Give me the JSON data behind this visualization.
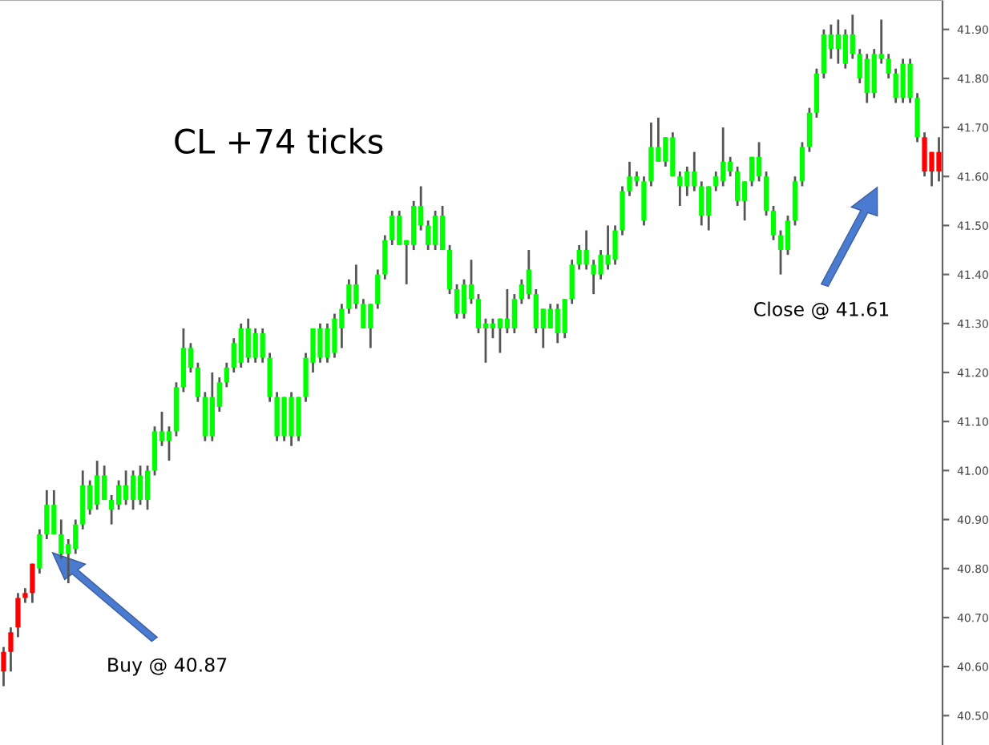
{
  "chart_data": {
    "type": "candlestick",
    "title": "CL +74 ticks",
    "annotations": [
      "Buy @ 40.87",
      "Close @ 41.61"
    ],
    "categories": [
      null,
      null,
      null,
      null,
      null,
      null,
      null,
      null,
      null,
      null,
      null,
      null,
      null,
      null,
      null,
      null,
      null,
      null,
      null,
      null,
      null,
      null,
      null,
      null,
      null,
      null,
      null,
      null,
      null,
      null,
      null,
      null,
      null,
      null,
      null,
      null,
      null,
      null,
      null,
      null,
      null,
      null,
      null,
      null,
      null,
      null,
      null,
      null,
      null,
      null,
      null,
      null,
      null,
      null,
      null,
      null,
      null,
      null,
      null,
      null,
      null,
      null,
      null,
      null,
      null,
      null,
      null,
      null,
      null,
      null,
      null,
      null,
      null,
      null,
      null,
      null,
      null,
      null,
      null,
      null,
      null,
      null,
      null,
      null,
      null,
      null,
      null,
      null,
      null,
      null,
      null,
      null,
      null,
      null,
      null,
      null,
      null,
      null,
      null,
      null,
      null,
      null,
      null,
      null,
      null,
      null,
      null,
      null,
      null,
      null,
      null,
      null,
      null,
      null,
      null,
      null,
      null,
      null,
      null,
      null,
      null,
      null,
      null,
      null,
      null,
      null,
      null,
      null,
      null,
      null,
      null
    ],
    "ohlc": [
      [
        40.63,
        40.64,
        40.56,
        40.59
      ],
      [
        40.67,
        40.68,
        40.59,
        40.63
      ],
      [
        40.74,
        40.75,
        40.66,
        40.68
      ],
      [
        40.75,
        40.76,
        40.73,
        40.74
      ],
      [
        40.81,
        40.81,
        40.73,
        40.75
      ],
      [
        40.8,
        40.88,
        40.79,
        40.87
      ],
      [
        40.87,
        40.96,
        40.86,
        40.93
      ],
      [
        40.87,
        40.96,
        40.87,
        40.93
      ],
      [
        40.83,
        40.9,
        40.82,
        40.87
      ],
      [
        40.83,
        40.86,
        40.77,
        40.85
      ],
      [
        40.84,
        40.9,
        40.83,
        40.89
      ],
      [
        40.89,
        41.0,
        40.88,
        40.97
      ],
      [
        40.92,
        40.98,
        40.91,
        40.97
      ],
      [
        40.93,
        41.02,
        40.92,
        40.99
      ],
      [
        40.94,
        41.01,
        40.94,
        40.99
      ],
      [
        40.92,
        40.95,
        40.89,
        40.94
      ],
      [
        40.93,
        40.98,
        40.92,
        40.97
      ],
      [
        40.94,
        41.0,
        40.93,
        40.97
      ],
      [
        40.94,
        41.0,
        40.92,
        40.99
      ],
      [
        40.94,
        41.01,
        40.93,
        40.99
      ],
      [
        40.94,
        41.01,
        40.92,
        41.0
      ],
      [
        41.0,
        41.09,
        40.99,
        41.08
      ],
      [
        41.06,
        41.12,
        41.05,
        41.08
      ],
      [
        41.06,
        41.09,
        41.02,
        41.08
      ],
      [
        41.08,
        41.18,
        41.07,
        41.17
      ],
      [
        41.17,
        41.29,
        41.16,
        41.25
      ],
      [
        41.21,
        41.26,
        41.2,
        41.25
      ],
      [
        41.15,
        41.22,
        41.14,
        41.21
      ],
      [
        41.07,
        41.16,
        41.06,
        41.15
      ],
      [
        41.07,
        41.2,
        41.06,
        41.15
      ],
      [
        41.13,
        41.19,
        41.12,
        41.18
      ],
      [
        41.18,
        41.22,
        41.17,
        41.21
      ],
      [
        41.21,
        41.27,
        41.2,
        41.26
      ],
      [
        41.22,
        41.3,
        41.21,
        41.29
      ],
      [
        41.23,
        41.31,
        41.22,
        41.29
      ],
      [
        41.23,
        41.29,
        41.22,
        41.28
      ],
      [
        41.23,
        41.29,
        41.22,
        41.28
      ],
      [
        41.15,
        41.24,
        41.14,
        41.23
      ],
      [
        41.07,
        41.16,
        41.06,
        41.15
      ],
      [
        41.07,
        41.15,
        41.06,
        41.15
      ],
      [
        41.07,
        41.16,
        41.05,
        41.15
      ],
      [
        41.07,
        41.15,
        41.06,
        41.15
      ],
      [
        41.15,
        41.24,
        41.14,
        41.23
      ],
      [
        41.22,
        41.29,
        41.2,
        41.29
      ],
      [
        41.23,
        41.3,
        41.22,
        41.29
      ],
      [
        41.23,
        41.3,
        41.22,
        41.29
      ],
      [
        41.24,
        41.32,
        41.23,
        41.31
      ],
      [
        41.29,
        41.34,
        41.25,
        41.33
      ],
      [
        41.33,
        41.39,
        41.32,
        41.38
      ],
      [
        41.34,
        41.42,
        41.33,
        41.38
      ],
      [
        41.29,
        41.35,
        41.29,
        41.34
      ],
      [
        41.29,
        41.34,
        41.25,
        41.34
      ],
      [
        41.34,
        41.41,
        41.33,
        41.4
      ],
      [
        41.4,
        41.48,
        41.39,
        41.47
      ],
      [
        41.47,
        41.53,
        41.46,
        41.52
      ],
      [
        41.46,
        41.53,
        41.46,
        41.52
      ],
      [
        41.46,
        41.47,
        41.38,
        41.47
      ],
      [
        41.46,
        41.55,
        41.45,
        41.54
      ],
      [
        41.5,
        41.58,
        41.49,
        41.54
      ],
      [
        41.46,
        41.51,
        41.45,
        41.5
      ],
      [
        41.46,
        41.53,
        41.45,
        41.52
      ],
      [
        41.45,
        41.54,
        41.45,
        41.52
      ],
      [
        41.37,
        41.46,
        41.36,
        41.45
      ],
      [
        41.32,
        41.38,
        41.31,
        41.37
      ],
      [
        41.32,
        41.39,
        41.31,
        41.38
      ],
      [
        41.35,
        41.43,
        41.34,
        41.38
      ],
      [
        41.29,
        41.36,
        41.28,
        41.35
      ],
      [
        41.29,
        41.31,
        41.22,
        41.3
      ],
      [
        41.29,
        41.31,
        41.27,
        41.3
      ],
      [
        41.29,
        41.31,
        41.24,
        41.31
      ],
      [
        41.29,
        41.37,
        41.28,
        41.31
      ],
      [
        41.29,
        41.36,
        41.28,
        41.35
      ],
      [
        41.35,
        41.39,
        41.34,
        41.38
      ],
      [
        41.36,
        41.45,
        41.35,
        41.41
      ],
      [
        41.29,
        41.37,
        41.28,
        41.36
      ],
      [
        41.29,
        41.33,
        41.25,
        41.33
      ],
      [
        41.29,
        41.34,
        41.29,
        41.33
      ],
      [
        41.28,
        41.34,
        41.26,
        41.33
      ],
      [
        41.28,
        41.35,
        41.27,
        41.35
      ],
      [
        41.35,
        41.43,
        41.34,
        41.42
      ],
      [
        41.42,
        41.46,
        41.41,
        41.45
      ],
      [
        41.42,
        41.49,
        41.41,
        41.45
      ],
      [
        41.4,
        41.43,
        41.36,
        41.42
      ],
      [
        41.4,
        41.45,
        41.39,
        41.44
      ],
      [
        41.42,
        41.5,
        41.41,
        41.44
      ],
      [
        41.43,
        41.5,
        41.42,
        41.49
      ],
      [
        41.49,
        41.58,
        41.48,
        41.57
      ],
      [
        41.57,
        41.63,
        41.56,
        41.6
      ],
      [
        41.59,
        41.61,
        41.58,
        41.6
      ],
      [
        41.51,
        41.6,
        41.5,
        41.59
      ],
      [
        41.59,
        41.71,
        41.58,
        41.66
      ],
      [
        41.63,
        41.72,
        41.63,
        41.66
      ],
      [
        41.63,
        41.68,
        41.62,
        41.68
      ],
      [
        41.6,
        41.69,
        41.6,
        41.68
      ],
      [
        41.58,
        41.61,
        41.54,
        41.6
      ],
      [
        41.58,
        41.62,
        41.56,
        41.61
      ],
      [
        41.58,
        41.65,
        41.57,
        41.61
      ],
      [
        41.52,
        41.59,
        41.5,
        41.58
      ],
      [
        41.52,
        41.58,
        41.49,
        41.58
      ],
      [
        41.58,
        41.61,
        41.57,
        41.6
      ],
      [
        41.59,
        41.7,
        41.58,
        41.63
      ],
      [
        41.61,
        41.64,
        41.6,
        41.63
      ],
      [
        41.55,
        41.62,
        41.54,
        41.61
      ],
      [
        41.55,
        41.59,
        41.51,
        41.59
      ],
      [
        41.59,
        41.64,
        41.58,
        41.64
      ],
      [
        41.6,
        41.67,
        41.59,
        41.64
      ],
      [
        41.53,
        41.61,
        41.52,
        41.6
      ],
      [
        41.48,
        41.54,
        41.47,
        41.53
      ],
      [
        41.45,
        41.49,
        41.4,
        41.48
      ],
      [
        41.45,
        41.52,
        41.44,
        41.51
      ],
      [
        41.51,
        41.6,
        41.5,
        41.59
      ],
      [
        41.59,
        41.67,
        41.58,
        41.66
      ],
      [
        41.66,
        41.74,
        41.65,
        41.73
      ],
      [
        41.73,
        41.82,
        41.72,
        41.81
      ],
      [
        41.81,
        41.9,
        41.8,
        41.89
      ],
      [
        41.86,
        41.91,
        41.84,
        41.89
      ],
      [
        41.86,
        41.92,
        41.83,
        41.89
      ],
      [
        41.83,
        41.9,
        41.82,
        41.89
      ],
      [
        41.85,
        41.93,
        41.84,
        41.89
      ],
      [
        41.8,
        41.86,
        41.79,
        41.85
      ],
      [
        41.77,
        41.85,
        41.75,
        41.84
      ],
      [
        41.77,
        41.86,
        41.76,
        41.85
      ],
      [
        41.84,
        41.92,
        41.83,
        41.85
      ],
      [
        41.81,
        41.85,
        41.8,
        41.84
      ],
      [
        41.76,
        41.82,
        41.75,
        41.81
      ],
      [
        41.76,
        41.84,
        41.75,
        41.83
      ],
      [
        41.76,
        41.84,
        41.75,
        41.83
      ],
      [
        41.68,
        41.77,
        41.67,
        41.76
      ],
      [
        41.68,
        41.69,
        41.6,
        41.61
      ],
      [
        41.65,
        41.65,
        41.58,
        41.61
      ],
      [
        41.65,
        41.68,
        41.59,
        41.61
      ]
    ],
    "colors": [
      "#ff0000",
      "#ff0000",
      "#ff0000",
      "#ff0000",
      "#ff0000",
      "#00ff00",
      "#00ff00",
      "#00ff00",
      "#00ff00",
      "#00ff00",
      "#00ff00",
      "#00ff00",
      "#00ff00",
      "#00ff00",
      "#00ff00",
      "#00ff00",
      "#00ff00",
      "#00ff00",
      "#00ff00",
      "#00ff00",
      "#00ff00",
      "#00ff00",
      "#00ff00",
      "#00ff00",
      "#00ff00",
      "#00ff00",
      "#00ff00",
      "#00ff00",
      "#00ff00",
      "#00ff00",
      "#00ff00",
      "#00ff00",
      "#00ff00",
      "#00ff00",
      "#00ff00",
      "#00ff00",
      "#00ff00",
      "#00ff00",
      "#00ff00",
      "#00ff00",
      "#00ff00",
      "#00ff00",
      "#00ff00",
      "#00ff00",
      "#00ff00",
      "#00ff00",
      "#00ff00",
      "#00ff00",
      "#00ff00",
      "#00ff00",
      "#00ff00",
      "#00ff00",
      "#00ff00",
      "#00ff00",
      "#00ff00",
      "#00ff00",
      "#00ff00",
      "#00ff00",
      "#00ff00",
      "#00ff00",
      "#00ff00",
      "#00ff00",
      "#00ff00",
      "#00ff00",
      "#00ff00",
      "#00ff00",
      "#00ff00",
      "#00ff00",
      "#00ff00",
      "#00ff00",
      "#00ff00",
      "#00ff00",
      "#00ff00",
      "#00ff00",
      "#00ff00",
      "#00ff00",
      "#00ff00",
      "#00ff00",
      "#00ff00",
      "#00ff00",
      "#00ff00",
      "#00ff00",
      "#00ff00",
      "#00ff00",
      "#00ff00",
      "#00ff00",
      "#00ff00",
      "#00ff00",
      "#00ff00",
      "#00ff00",
      "#00ff00",
      "#00ff00",
      "#00ff00",
      "#00ff00",
      "#00ff00",
      "#00ff00",
      "#00ff00",
      "#00ff00",
      "#00ff00",
      "#00ff00",
      "#00ff00",
      "#00ff00",
      "#00ff00",
      "#00ff00",
      "#00ff00",
      "#00ff00",
      "#00ff00",
      "#00ff00",
      "#00ff00",
      "#00ff00",
      "#00ff00",
      "#00ff00",
      "#00ff00",
      "#00ff00",
      "#00ff00",
      "#00ff00",
      "#00ff00",
      "#00ff00",
      "#00ff00",
      "#00ff00",
      "#00ff00",
      "#00ff00",
      "#00ff00",
      "#00ff00",
      "#00ff00",
      "#00ff00",
      "#00ff00",
      "#00ff00",
      "#ff0000",
      "#ff0000",
      "#ff0000"
    ],
    "ylim": [
      40.44,
      41.96
    ],
    "yticks": [
      {
        "value": 40.5,
        "label": "40.50"
      },
      {
        "value": 40.6,
        "label": "40.60"
      },
      {
        "value": 40.7,
        "label": "40.70"
      },
      {
        "value": 40.8,
        "label": "40.80"
      },
      {
        "value": 40.9,
        "label": "40.90"
      },
      {
        "value": 41.0,
        "label": "41.00"
      },
      {
        "value": 41.1,
        "label": "41.10"
      },
      {
        "value": 41.2,
        "label": "41.20"
      },
      {
        "value": 41.3,
        "label": "41.30"
      },
      {
        "value": 41.4,
        "label": "41.40"
      },
      {
        "value": 41.5,
        "label": "41.50"
      },
      {
        "value": 41.6,
        "label": "41.60"
      },
      {
        "value": 41.7,
        "label": "41.70"
      },
      {
        "value": 41.8,
        "label": "41.80"
      },
      {
        "value": 41.9,
        "label": "41.90"
      }
    ],
    "tick_labels": "y",
    "grid": false,
    "legend": false
  }
}
